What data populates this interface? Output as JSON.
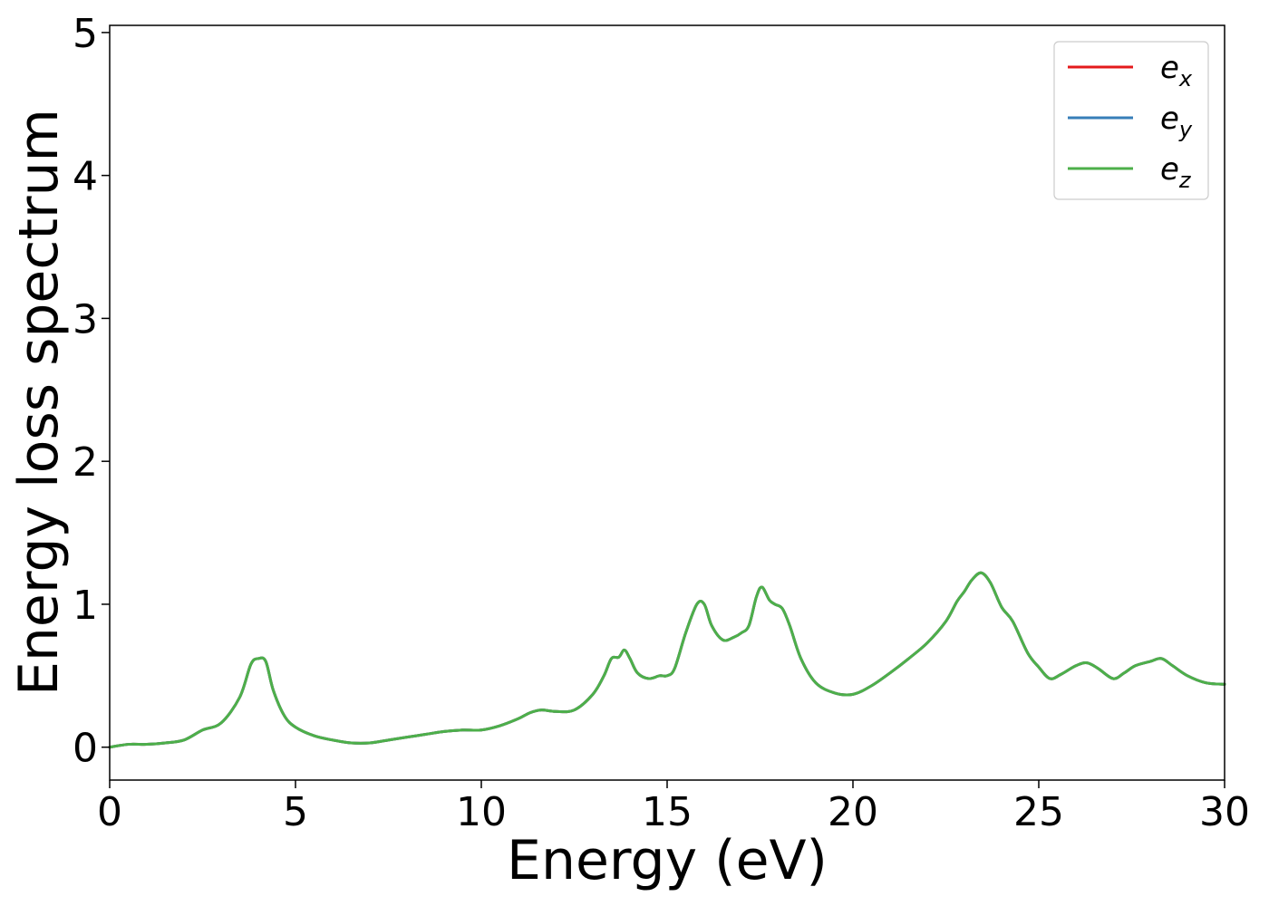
{
  "chart_data": {
    "type": "line",
    "title": "",
    "xlabel": "Energy (eV)",
    "ylabel": "Energy loss spectrum",
    "xlim": [
      0,
      30
    ],
    "ylim": [
      -0.23,
      5.05
    ],
    "xticks": [
      0,
      5,
      10,
      15,
      20,
      25,
      30
    ],
    "yticks": [
      0,
      1,
      2,
      3,
      4,
      5
    ],
    "grid": false,
    "legend_position": "top-right",
    "x": [
      0,
      0.5,
      1,
      1.5,
      2,
      2.5,
      3,
      3.5,
      3.8,
      4,
      4.2,
      4.4,
      4.7,
      5,
      5.5,
      6,
      6.5,
      7,
      7.5,
      8,
      8.5,
      9,
      9.5,
      10,
      10.5,
      11,
      11.3,
      11.6,
      12,
      12.5,
      13,
      13.3,
      13.5,
      13.7,
      13.85,
      14,
      14.2,
      14.5,
      14.8,
      15,
      15.2,
      15.5,
      15.8,
      16,
      16.2,
      16.5,
      16.8,
      17,
      17.2,
      17.4,
      17.55,
      17.75,
      17.9,
      18.1,
      18.3,
      18.6,
      19,
      19.5,
      20,
      20.5,
      21,
      21.5,
      22,
      22.5,
      22.8,
      23,
      23.2,
      23.45,
      23.7,
      24,
      24.3,
      24.7,
      25,
      25.3,
      25.6,
      26,
      26.3,
      26.6,
      27,
      27.3,
      27.6,
      28,
      28.3,
      28.6,
      29,
      29.5,
      30
    ],
    "series": [
      {
        "name": "e_x",
        "color": "#e41a1c",
        "values": [
          0.0,
          0.02,
          0.02,
          0.03,
          0.05,
          0.12,
          0.17,
          0.35,
          0.58,
          0.62,
          0.6,
          0.4,
          0.22,
          0.14,
          0.08,
          0.05,
          0.03,
          0.03,
          0.05,
          0.07,
          0.09,
          0.11,
          0.12,
          0.12,
          0.15,
          0.2,
          0.24,
          0.26,
          0.25,
          0.26,
          0.37,
          0.5,
          0.62,
          0.63,
          0.68,
          0.62,
          0.52,
          0.48,
          0.5,
          0.5,
          0.55,
          0.8,
          1.0,
          1.0,
          0.85,
          0.75,
          0.77,
          0.8,
          0.85,
          1.05,
          1.12,
          1.03,
          1.0,
          0.97,
          0.85,
          0.62,
          0.45,
          0.38,
          0.37,
          0.43,
          0.52,
          0.62,
          0.73,
          0.88,
          1.02,
          1.09,
          1.17,
          1.22,
          1.15,
          0.98,
          0.88,
          0.66,
          0.56,
          0.48,
          0.51,
          0.57,
          0.59,
          0.55,
          0.48,
          0.52,
          0.57,
          0.6,
          0.62,
          0.57,
          0.5,
          0.45,
          0.44
        ]
      },
      {
        "name": "e_y",
        "color": "#377eb8",
        "values": [
          0.0,
          0.02,
          0.02,
          0.03,
          0.05,
          0.12,
          0.17,
          0.35,
          0.58,
          0.62,
          0.6,
          0.4,
          0.22,
          0.14,
          0.08,
          0.05,
          0.03,
          0.03,
          0.05,
          0.07,
          0.09,
          0.11,
          0.12,
          0.12,
          0.15,
          0.2,
          0.24,
          0.26,
          0.25,
          0.26,
          0.37,
          0.5,
          0.62,
          0.63,
          0.68,
          0.62,
          0.52,
          0.48,
          0.5,
          0.5,
          0.55,
          0.8,
          1.0,
          1.0,
          0.85,
          0.75,
          0.77,
          0.8,
          0.85,
          1.05,
          1.12,
          1.03,
          1.0,
          0.97,
          0.85,
          0.62,
          0.45,
          0.38,
          0.37,
          0.43,
          0.52,
          0.62,
          0.73,
          0.88,
          1.02,
          1.09,
          1.17,
          1.22,
          1.15,
          0.98,
          0.88,
          0.66,
          0.56,
          0.48,
          0.51,
          0.57,
          0.59,
          0.55,
          0.48,
          0.52,
          0.57,
          0.6,
          0.62,
          0.57,
          0.5,
          0.45,
          0.44
        ]
      },
      {
        "name": "e_z",
        "color": "#4daf4a",
        "values": [
          0.0,
          0.02,
          0.02,
          0.03,
          0.05,
          0.12,
          0.17,
          0.35,
          0.58,
          0.62,
          0.6,
          0.4,
          0.22,
          0.14,
          0.08,
          0.05,
          0.03,
          0.03,
          0.05,
          0.07,
          0.09,
          0.11,
          0.12,
          0.12,
          0.15,
          0.2,
          0.24,
          0.26,
          0.25,
          0.26,
          0.37,
          0.5,
          0.62,
          0.63,
          0.68,
          0.62,
          0.52,
          0.48,
          0.5,
          0.5,
          0.55,
          0.8,
          1.0,
          1.0,
          0.85,
          0.75,
          0.77,
          0.8,
          0.85,
          1.05,
          1.12,
          1.03,
          1.0,
          0.97,
          0.85,
          0.62,
          0.45,
          0.38,
          0.37,
          0.43,
          0.52,
          0.62,
          0.73,
          0.88,
          1.02,
          1.09,
          1.17,
          1.22,
          1.15,
          0.98,
          0.88,
          0.66,
          0.56,
          0.48,
          0.51,
          0.57,
          0.59,
          0.55,
          0.48,
          0.52,
          0.57,
          0.6,
          0.62,
          0.57,
          0.5,
          0.45,
          0.44
        ]
      }
    ],
    "legend": [
      {
        "base": "e",
        "sub": "x",
        "color": "#e41a1c"
      },
      {
        "base": "e",
        "sub": "y",
        "color": "#377eb8"
      },
      {
        "base": "e",
        "sub": "z",
        "color": "#4daf4a"
      }
    ]
  }
}
